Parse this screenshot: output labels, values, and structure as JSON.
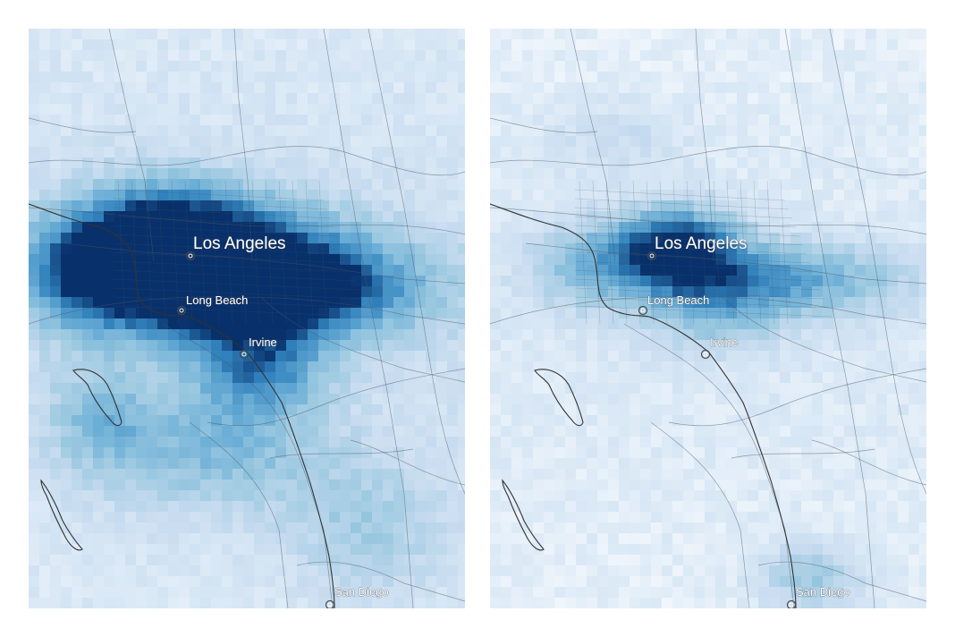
{
  "maps": [
    {
      "id": "left",
      "cities": {
        "los_angeles": "Los Angeles",
        "long_beach": "Long Beach",
        "irvine": "Irvine",
        "san_diego": "San Diego"
      }
    },
    {
      "id": "right",
      "cities": {
        "los_angeles": "Los Angeles",
        "long_beach": "Long Beach",
        "irvine": "Irvine",
        "san_diego": "San Diego"
      }
    }
  ],
  "colors": {
    "ramp": [
      "#ffffff",
      "#deebf7",
      "#c6dbef",
      "#9ecae1",
      "#6baed6",
      "#3182bd",
      "#08306b"
    ],
    "roads": "#4a5866",
    "coast": "#333333"
  }
}
